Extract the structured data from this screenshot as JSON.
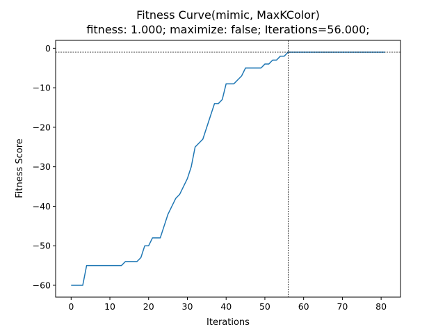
{
  "chart_data": {
    "type": "line",
    "title": "Fitness Curve(mimic, MaxKColor)",
    "subtitle": "fitness: 1.000; maximize: false; Iterations=56.000;",
    "xlabel": "Iterations",
    "ylabel": "Fitness Score",
    "xlim": [
      -4,
      85
    ],
    "ylim": [
      -63,
      2
    ],
    "xticks": [
      0,
      10,
      20,
      30,
      40,
      50,
      60,
      70,
      80
    ],
    "yticks": [
      0,
      -10,
      -20,
      -30,
      -40,
      -50,
      -60
    ],
    "xtick_labels": [
      "0",
      "10",
      "20",
      "30",
      "40",
      "50",
      "60",
      "70",
      "80"
    ],
    "ytick_labels": [
      "0",
      "−10",
      "−20",
      "−30",
      "−40",
      "−50",
      "−60"
    ],
    "grid": false,
    "line_color": "#1f77b4",
    "reference_lines": {
      "x": 56,
      "y": -1
    },
    "series": [
      {
        "x": [
          0,
          1,
          2,
          3,
          4,
          5,
          6,
          7,
          8,
          9,
          10,
          11,
          12,
          13,
          14,
          15,
          16,
          17,
          18,
          19,
          20,
          21,
          22,
          23,
          24,
          25,
          26,
          27,
          28,
          29,
          30,
          31,
          32,
          33,
          34,
          35,
          36,
          37,
          38,
          39,
          40,
          41,
          42,
          43,
          44,
          45,
          46,
          47,
          48,
          49,
          50,
          51,
          52,
          53,
          54,
          55,
          56,
          57,
          58,
          59,
          60,
          61,
          62,
          63,
          64,
          65,
          66,
          67,
          68,
          69,
          70,
          71,
          72,
          73,
          74,
          75,
          76,
          77,
          78,
          79,
          80,
          81
        ],
        "values": [
          -60,
          -60,
          -60,
          -60,
          -55,
          -55,
          -55,
          -55,
          -55,
          -55,
          -55,
          -55,
          -55,
          -55,
          -54,
          -54,
          -54,
          -54,
          -53,
          -50,
          -50,
          -48,
          -48,
          -48,
          -45,
          -42,
          -40,
          -38,
          -37,
          -35,
          -33,
          -30,
          -25,
          -24,
          -23,
          -20,
          -17,
          -14,
          -14,
          -13,
          -9,
          -9,
          -9,
          -8,
          -7,
          -5,
          -5,
          -5,
          -5,
          -5,
          -4,
          -4,
          -3,
          -3,
          -2,
          -2,
          -1,
          -1,
          -1,
          -1,
          -1,
          -1,
          -1,
          -1,
          -1,
          -1,
          -1,
          -1,
          -1,
          -1,
          -1,
          -1,
          -1,
          -1,
          -1,
          -1,
          -1,
          -1,
          -1,
          -1,
          -1,
          -1
        ]
      }
    ]
  }
}
